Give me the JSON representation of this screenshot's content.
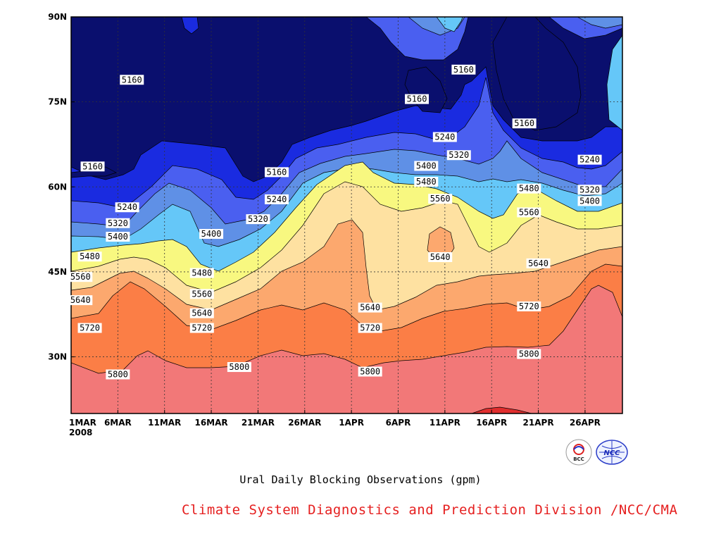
{
  "chart_data": {
    "type": "contour",
    "title": "",
    "xlabel": "Ural Daily Blocking Observations (gpm)",
    "ylabel": "",
    "x_ticks": [
      "1MAR",
      "6MAR",
      "11MAR",
      "16MAR",
      "21MAR",
      "26MAR",
      "1APR",
      "6APR",
      "11APR",
      "16APR",
      "21APR",
      "26APR"
    ],
    "x_year": "2008",
    "x_range_days": [
      0,
      59
    ],
    "y_ticks": [
      "90N",
      "75N",
      "60N",
      "45N",
      "30N"
    ],
    "y_range_deg": [
      20,
      90
    ],
    "levels": [
      5160,
      5240,
      5320,
      5400,
      5480,
      5560,
      5640,
      5720,
      5800,
      5880
    ],
    "level_colors": [
      "#0a0f6e",
      "#1a2be0",
      "#4a5ff0",
      "#5f90e6",
      "#65c7f8",
      "#f8f880",
      "#fee1a1",
      "#fca86e",
      "#fb7e46",
      "#f27878",
      "#e02e2e"
    ],
    "contour_labels": [
      {
        "text": "5160",
        "day": 6.5,
        "lat": 78.9
      },
      {
        "text": "5160",
        "day": 2.3,
        "lat": 63.6
      },
      {
        "text": "5160",
        "day": 22.0,
        "lat": 62.6
      },
      {
        "text": "5160",
        "day": 42.0,
        "lat": 80.7
      },
      {
        "text": "5160",
        "day": 37.0,
        "lat": 75.5
      },
      {
        "text": "5160",
        "day": 48.5,
        "lat": 71.2
      },
      {
        "text": "5240",
        "day": 6.0,
        "lat": 56.4
      },
      {
        "text": "5240",
        "day": 22.0,
        "lat": 57.8
      },
      {
        "text": "5240",
        "day": 40.0,
        "lat": 68.8
      },
      {
        "text": "5240",
        "day": 55.5,
        "lat": 64.8
      },
      {
        "text": "5320",
        "day": 5.0,
        "lat": 53.6
      },
      {
        "text": "5320",
        "day": 20.0,
        "lat": 54.3
      },
      {
        "text": "5320",
        "day": 41.5,
        "lat": 65.6
      },
      {
        "text": "5320",
        "day": 55.5,
        "lat": 59.5
      },
      {
        "text": "5400",
        "day": 5.0,
        "lat": 51.2
      },
      {
        "text": "5400",
        "day": 15.0,
        "lat": 51.7
      },
      {
        "text": "5400",
        "day": 38.0,
        "lat": 63.7
      },
      {
        "text": "5400",
        "day": 55.5,
        "lat": 57.5
      },
      {
        "text": "5480",
        "day": 2.0,
        "lat": 47.7
      },
      {
        "text": "5480",
        "day": 14.0,
        "lat": 44.8
      },
      {
        "text": "5480",
        "day": 38.0,
        "lat": 60.9
      },
      {
        "text": "5480",
        "day": 49.0,
        "lat": 59.7
      },
      {
        "text": "5560",
        "day": 1.0,
        "lat": 44.1
      },
      {
        "text": "5560",
        "day": 14.0,
        "lat": 41.1
      },
      {
        "text": "5560",
        "day": 39.5,
        "lat": 57.9
      },
      {
        "text": "5560",
        "day": 49.0,
        "lat": 55.5
      },
      {
        "text": "5640",
        "day": 1.0,
        "lat": 40.0
      },
      {
        "text": "5640",
        "day": 14.0,
        "lat": 37.7
      },
      {
        "text": "5640",
        "day": 32.0,
        "lat": 38.7
      },
      {
        "text": "5640",
        "day": 39.5,
        "lat": 47.6
      },
      {
        "text": "5640",
        "day": 50.0,
        "lat": 46.5
      },
      {
        "text": "5720",
        "day": 2.0,
        "lat": 35.1
      },
      {
        "text": "5720",
        "day": 14.0,
        "lat": 35.1
      },
      {
        "text": "5720",
        "day": 32.0,
        "lat": 35.1
      },
      {
        "text": "5720",
        "day": 49.0,
        "lat": 38.9
      },
      {
        "text": "5800",
        "day": 5.0,
        "lat": 26.9
      },
      {
        "text": "5800",
        "day": 18.0,
        "lat": 28.2
      },
      {
        "text": "5800",
        "day": 32.0,
        "lat": 27.4
      },
      {
        "text": "5800",
        "day": 49.0,
        "lat": 30.5
      }
    ]
  },
  "footer": "Climate System Diagnostics and Prediction Division /NCC/CMA",
  "logos": [
    "bcc-logo",
    "ncc-logo"
  ]
}
